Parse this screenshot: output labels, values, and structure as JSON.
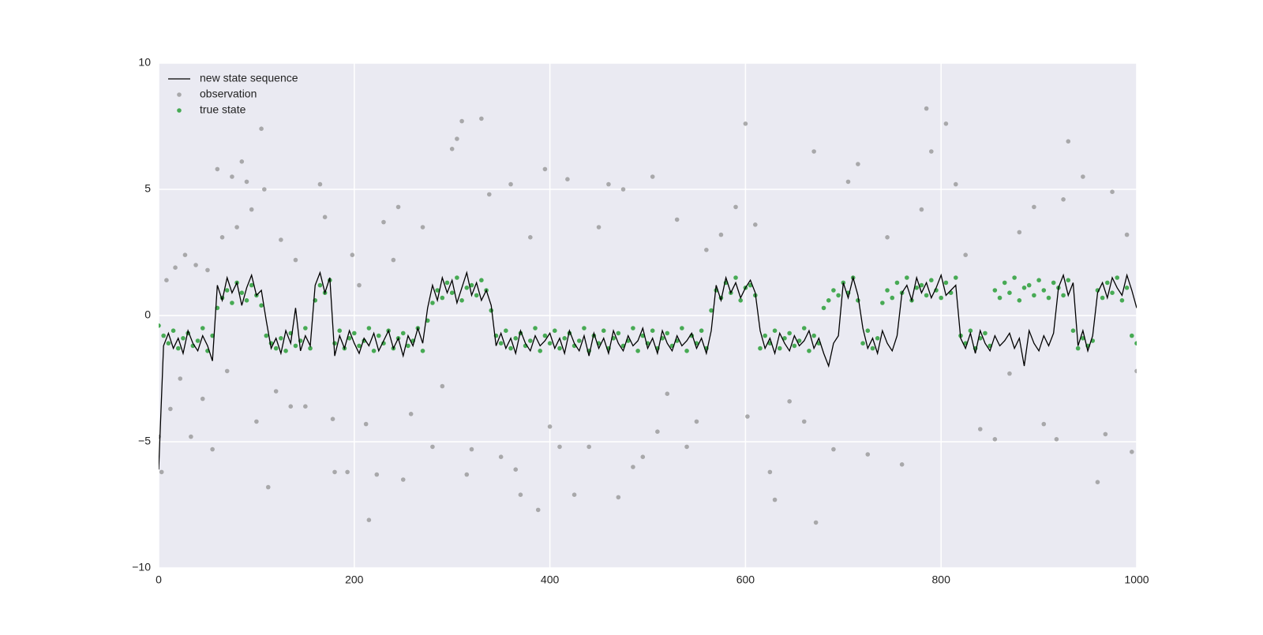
{
  "chart_data": {
    "type": "line",
    "xlim": [
      0,
      1000
    ],
    "xticks": [
      0,
      200,
      400,
      600,
      800,
      1000
    ],
    "ylim": [
      -10,
      10
    ],
    "yticks": [
      {
        "value": -10,
        "label": "−10"
      },
      {
        "value": -5,
        "label": "−5"
      },
      0,
      5,
      10
    ],
    "grid": true,
    "legend": "upper left",
    "x": [
      0,
      5,
      10,
      15,
      20,
      25,
      30,
      35,
      40,
      45,
      50,
      55,
      60,
      65,
      70,
      75,
      80,
      85,
      90,
      95,
      100,
      105,
      110,
      115,
      120,
      125,
      130,
      135,
      140,
      145,
      150,
      155,
      160,
      165,
      170,
      175,
      180,
      185,
      190,
      195,
      200,
      205,
      210,
      215,
      220,
      225,
      230,
      235,
      240,
      245,
      250,
      255,
      260,
      265,
      270,
      275,
      280,
      285,
      290,
      295,
      300,
      305,
      310,
      315,
      320,
      325,
      330,
      335,
      340,
      345,
      350,
      355,
      360,
      365,
      370,
      375,
      380,
      385,
      390,
      395,
      400,
      405,
      410,
      415,
      420,
      425,
      430,
      435,
      440,
      445,
      450,
      455,
      460,
      465,
      470,
      475,
      480,
      485,
      490,
      495,
      500,
      505,
      510,
      515,
      520,
      525,
      530,
      535,
      540,
      545,
      550,
      555,
      560,
      565,
      570,
      575,
      580,
      585,
      590,
      595,
      600,
      605,
      610,
      615,
      620,
      625,
      630,
      635,
      640,
      645,
      650,
      655,
      660,
      665,
      670,
      675,
      680,
      685,
      690,
      695,
      700,
      705,
      710,
      715,
      720,
      725,
      730,
      735,
      740,
      745,
      750,
      755,
      760,
      765,
      770,
      775,
      780,
      785,
      790,
      795,
      800,
      805,
      810,
      815,
      820,
      825,
      830,
      835,
      840,
      845,
      850,
      855,
      860,
      865,
      870,
      875,
      880,
      885,
      890,
      895,
      900,
      905,
      910,
      915,
      920,
      925,
      930,
      935,
      940,
      945,
      950,
      955,
      960,
      965,
      970,
      975,
      980,
      985,
      990,
      995,
      1000
    ],
    "series": [
      {
        "name": "new state sequence",
        "type": "line",
        "color": "#000000",
        "values": [
          -6.1,
          -1.2,
          -0.7,
          -1.3,
          -0.9,
          -1.5,
          -0.6,
          -1.1,
          -1.4,
          -0.8,
          -1.2,
          -1.8,
          1.2,
          0.6,
          1.5,
          0.9,
          1.3,
          0.4,
          1.1,
          1.6,
          0.8,
          1.0,
          -0.2,
          -1.3,
          -0.9,
          -1.5,
          -0.6,
          -1.1,
          0.3,
          -1.4,
          -0.8,
          -1.2,
          1.2,
          1.7,
          0.9,
          1.5,
          -1.6,
          -0.8,
          -1.3,
          -0.6,
          -1.1,
          -1.5,
          -0.9,
          -1.2,
          -0.7,
          -1.4,
          -1.0,
          -0.6,
          -1.3,
          -0.9,
          -1.6,
          -0.8,
          -1.2,
          -0.5,
          -1.1,
          0.3,
          1.2,
          0.6,
          1.5,
          0.9,
          1.4,
          0.5,
          1.1,
          1.7,
          0.8,
          1.3,
          0.6,
          1.0,
          0.4,
          -1.2,
          -0.7,
          -1.3,
          -0.9,
          -1.5,
          -0.6,
          -1.1,
          -1.4,
          -0.8,
          -1.2,
          -1.0,
          -0.7,
          -1.3,
          -0.9,
          -1.5,
          -0.6,
          -1.1,
          -1.4,
          -0.8,
          -1.6,
          -0.7,
          -1.3,
          -0.9,
          -1.5,
          -0.6,
          -1.1,
          -1.4,
          -0.8,
          -1.2,
          -1.0,
          -0.5,
          -1.3,
          -0.9,
          -1.5,
          -0.6,
          -1.1,
          -1.4,
          -0.8,
          -1.2,
          -1.0,
          -0.7,
          -1.3,
          -0.9,
          -1.5,
          -0.6,
          1.2,
          0.6,
          1.5,
          0.9,
          1.3,
          0.7,
          1.1,
          1.4,
          0.9,
          -0.6,
          -1.3,
          -0.9,
          -1.5,
          -0.7,
          -1.1,
          -1.4,
          -0.8,
          -1.2,
          -1.0,
          -0.6,
          -1.3,
          -0.9,
          -1.5,
          -2.0,
          -1.1,
          -0.8,
          1.3,
          0.7,
          1.5,
          0.8,
          -0.5,
          -1.3,
          -0.9,
          -1.5,
          -0.6,
          -1.1,
          -1.4,
          -0.8,
          0.9,
          1.2,
          0.6,
          1.5,
          0.9,
          1.3,
          0.7,
          1.1,
          1.6,
          0.8,
          1.0,
          1.2,
          -0.9,
          -1.3,
          -0.7,
          -1.5,
          -0.6,
          -1.1,
          -1.4,
          -0.8,
          -1.2,
          -1.0,
          -0.7,
          -1.3,
          -0.9,
          -2.0,
          -0.6,
          -1.1,
          -1.4,
          -0.8,
          -1.2,
          -0.7,
          1.1,
          1.6,
          0.8,
          1.3,
          -1.2,
          -0.6,
          -1.4,
          -0.8,
          0.9,
          1.3,
          0.7,
          1.5,
          1.1,
          0.8,
          1.6,
          1.0,
          0.3
        ]
      },
      {
        "name": "observation",
        "type": "scatter",
        "color": "#8c8c8c",
        "x": [
          0,
          3,
          8,
          12,
          17,
          22,
          27,
          33,
          38,
          45,
          50,
          55,
          60,
          65,
          70,
          75,
          80,
          85,
          90,
          95,
          100,
          105,
          108,
          112,
          120,
          125,
          135,
          140,
          150,
          165,
          170,
          178,
          180,
          193,
          198,
          205,
          212,
          215,
          223,
          230,
          240,
          245,
          250,
          258,
          270,
          280,
          290,
          300,
          305,
          310,
          315,
          320,
          330,
          338,
          350,
          360,
          365,
          370,
          380,
          388,
          395,
          400,
          410,
          418,
          425,
          440,
          450,
          460,
          470,
          475,
          485,
          495,
          505,
          510,
          520,
          530,
          540,
          550,
          560,
          575,
          590,
          600,
          602,
          610,
          625,
          630,
          645,
          660,
          670,
          672,
          690,
          705,
          715,
          725,
          745,
          760,
          780,
          785,
          790,
          805,
          815,
          825,
          840,
          855,
          870,
          880,
          895,
          905,
          918,
          925,
          930,
          945,
          960,
          968,
          975,
          990,
          995,
          1000
        ],
        "values": [
          -4.8,
          -6.2,
          1.4,
          -3.7,
          1.9,
          -2.5,
          2.4,
          -4.8,
          2.0,
          -3.3,
          1.8,
          -5.3,
          5.8,
          3.1,
          -2.2,
          5.5,
          3.5,
          6.1,
          5.3,
          4.2,
          -4.2,
          7.4,
          5.0,
          -6.8,
          -3.0,
          3.0,
          -3.6,
          2.2,
          -3.6,
          5.2,
          3.9,
          -4.1,
          -6.2,
          -6.2,
          2.4,
          1.2,
          -4.3,
          -8.1,
          -6.3,
          3.7,
          2.2,
          4.3,
          -6.5,
          -3.9,
          3.5,
          -5.2,
          -2.8,
          6.6,
          7.0,
          7.7,
          -6.3,
          -5.3,
          7.8,
          4.8,
          -5.6,
          5.2,
          -6.1,
          -7.1,
          3.1,
          -7.7,
          5.8,
          -4.4,
          -5.2,
          5.4,
          -7.1,
          -5.2,
          3.5,
          5.2,
          -7.2,
          5.0,
          -6.0,
          -5.6,
          5.5,
          -4.6,
          -3.1,
          3.8,
          -5.2,
          -4.2,
          2.6,
          3.2,
          4.3,
          7.6,
          -4.0,
          3.6,
          -6.2,
          -7.3,
          -3.4,
          -4.2,
          6.5,
          -8.2,
          -5.3,
          5.3,
          6.0,
          -5.5,
          3.1,
          -5.9,
          4.2,
          8.2,
          6.5,
          7.6,
          5.2,
          2.4,
          -4.5,
          -4.9,
          -2.3,
          3.3,
          4.3,
          -4.3,
          -4.9,
          4.6,
          6.9,
          5.5,
          -6.6,
          -4.7,
          4.9,
          3.2,
          -5.4,
          -2.2
        ]
      },
      {
        "name": "true state",
        "type": "scatter",
        "color": "#3ea74b",
        "values": [
          -0.4,
          -0.8,
          -1.1,
          -0.6,
          -1.3,
          -0.9,
          -0.7,
          -1.2,
          -1.0,
          -0.5,
          -1.4,
          -0.8,
          0.3,
          0.7,
          1.0,
          0.5,
          1.3,
          0.9,
          0.6,
          1.2,
          0.8,
          0.4,
          -0.8,
          -1.1,
          -1.3,
          -0.9,
          -1.4,
          -0.7,
          -1.2,
          -1.0,
          -0.5,
          -1.3,
          0.6,
          1.2,
          0.9,
          1.4,
          -1.1,
          -0.6,
          -1.3,
          -0.9,
          -0.7,
          -1.2,
          -1.0,
          -0.5,
          -1.4,
          -0.8,
          -1.1,
          -0.6,
          -1.3,
          -0.9,
          -0.7,
          -1.2,
          -1.0,
          -0.5,
          -1.4,
          -0.2,
          0.5,
          1.0,
          0.7,
          1.3,
          0.9,
          1.5,
          0.6,
          1.1,
          1.2,
          0.8,
          1.4,
          1.0,
          0.2,
          -0.8,
          -1.1,
          -0.6,
          -1.3,
          -0.9,
          -0.7,
          -1.2,
          -1.0,
          -0.5,
          -1.4,
          -0.8,
          -1.1,
          -0.6,
          -1.3,
          -0.9,
          -0.7,
          -1.2,
          -1.0,
          -0.5,
          -1.4,
          -0.8,
          -1.1,
          -0.6,
          -1.3,
          -0.9,
          -0.7,
          -1.2,
          -1.0,
          -0.5,
          -1.4,
          -0.8,
          -1.1,
          -0.6,
          -1.3,
          -0.9,
          -0.7,
          -1.2,
          -1.0,
          -0.5,
          -1.4,
          -0.8,
          -1.1,
          -0.6,
          -1.3,
          0.2,
          1.0,
          0.7,
          1.3,
          0.9,
          1.5,
          0.6,
          1.1,
          1.2,
          0.8,
          -1.3,
          -0.8,
          -1.1,
          -0.6,
          -1.3,
          -0.9,
          -0.7,
          -1.2,
          -1.0,
          -0.5,
          -1.4,
          -0.8,
          -1.1,
          0.3,
          0.6,
          1.0,
          0.8,
          1.3,
          0.9,
          1.5,
          0.6,
          -1.1,
          -0.6,
          -1.3,
          -0.9,
          0.5,
          1.0,
          0.7,
          1.3,
          0.9,
          1.5,
          0.6,
          1.1,
          1.2,
          0.8,
          1.4,
          1.0,
          0.7,
          1.3,
          0.9,
          1.5,
          -0.8,
          -1.1,
          -0.6,
          -1.3,
          -0.9,
          -0.7,
          -1.2,
          1.0,
          0.7,
          1.3,
          0.9,
          1.5,
          0.6,
          1.1,
          1.2,
          0.8,
          1.4,
          1.0,
          0.7,
          1.3,
          1.1,
          0.8,
          1.4,
          -0.6,
          -1.3,
          -0.9,
          -1.2,
          -1.0,
          1.0,
          0.7,
          1.3,
          0.9,
          1.5,
          0.6,
          1.1,
          -0.8,
          -1.1
        ]
      }
    ]
  }
}
